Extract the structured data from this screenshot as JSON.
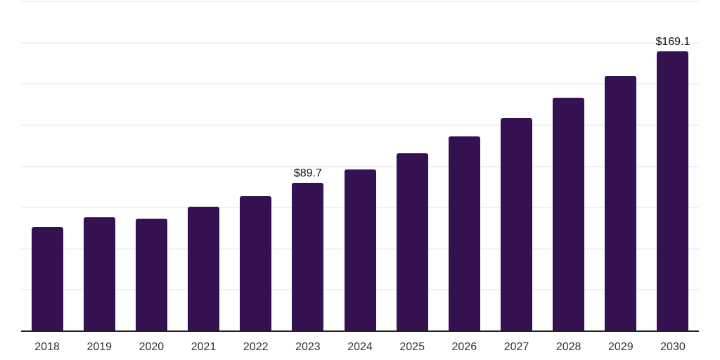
{
  "chart_data": {
    "type": "bar",
    "title": "",
    "xlabel": "",
    "ylabel": "",
    "categories": [
      "2018",
      "2019",
      "2020",
      "2021",
      "2022",
      "2023",
      "2024",
      "2025",
      "2026",
      "2027",
      "2028",
      "2029",
      "2030"
    ],
    "values": [
      62.8,
      68.6,
      67.8,
      75.0,
      81.4,
      89.7,
      97.5,
      107.3,
      117.6,
      128.7,
      141.0,
      154.2,
      169.1
    ],
    "value_labels": {
      "2023": "$89.7",
      "2030": "$169.1"
    },
    "ylim": [
      0,
      200
    ],
    "grid_step": 25,
    "grid": "horizontal",
    "legend": "none",
    "colors": {
      "bar": "#341151",
      "gridline": "#f2f2f4",
      "axis": "#222222",
      "tick_label": "#333333",
      "value_label": "#111111",
      "background": "#ffffff"
    }
  }
}
